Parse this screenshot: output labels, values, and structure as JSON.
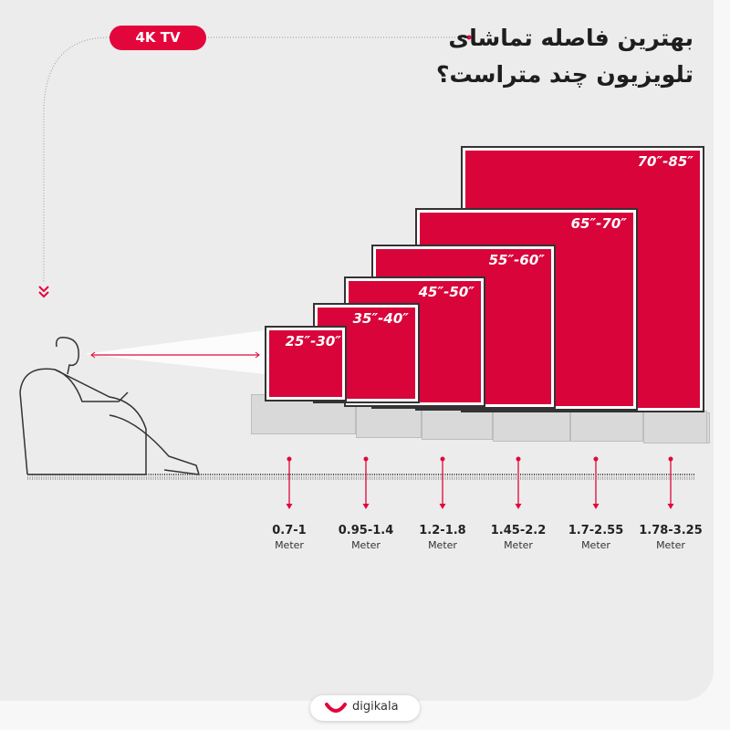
{
  "badge": "4K TV",
  "title": {
    "line1": "بهترین فاصله تماشای",
    "line2": "تلویزیون چند متراست؟"
  },
  "accent": "#e3063b",
  "tvs": [
    {
      "size": "25″-30″",
      "distance": "0.7-1",
      "unit": "Meter"
    },
    {
      "size": "35″-40″",
      "distance": "0.95-1.4",
      "unit": "Meter"
    },
    {
      "size": "45″-50″",
      "distance": "1.2-1.8",
      "unit": "Meter"
    },
    {
      "size": "55″-60″",
      "distance": "1.45-2.2",
      "unit": "Meter"
    },
    {
      "size": "65″-70″",
      "distance": "1.7-2.55",
      "unit": "Meter"
    },
    {
      "size": "70″-85″",
      "distance": "1.78-3.25",
      "unit": "Meter"
    }
  ],
  "brand": "digikala"
}
